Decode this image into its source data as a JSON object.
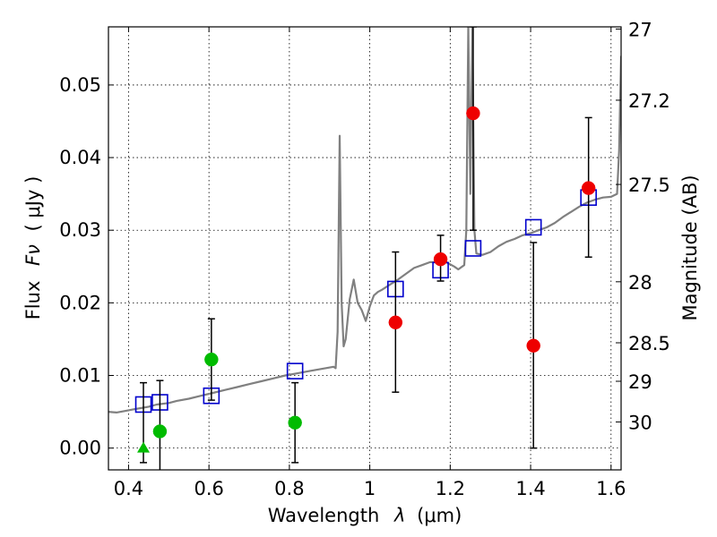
{
  "chart_data": {
    "type": "scatter",
    "xlabel_text": "Wavelength",
    "xlabel_symbol": "λ",
    "xlabel_unit": "(μm)",
    "ylabel_text": "Flux",
    "ylabel_symbol": "Fν",
    "ylabel_unit": "( μJy )",
    "y2label": "Magnitude (AB)",
    "xlim": [
      0.35,
      1.625
    ],
    "ylim": [
      -0.003,
      0.058
    ],
    "xticks": [
      {
        "value": 0.4,
        "label": "0.4"
      },
      {
        "value": 0.6,
        "label": "0.6"
      },
      {
        "value": 0.8,
        "label": "0.8"
      },
      {
        "value": 1.0,
        "label": "1"
      },
      {
        "value": 1.2,
        "label": "1.2"
      },
      {
        "value": 1.4,
        "label": "1.4"
      },
      {
        "value": 1.6,
        "label": "1.6"
      }
    ],
    "yticks": [
      {
        "value": 0.0,
        "label": "0.00"
      },
      {
        "value": 0.01,
        "label": "0.01"
      },
      {
        "value": 0.02,
        "label": "0.02"
      },
      {
        "value": 0.03,
        "label": "0.03"
      },
      {
        "value": 0.04,
        "label": "0.04"
      },
      {
        "value": 0.05,
        "label": "0.05"
      }
    ],
    "y2ticks": [
      {
        "flux": 0.0577,
        "label": "27"
      },
      {
        "flux": 0.0479,
        "label": "27.2"
      },
      {
        "flux": 0.0363,
        "label": "27.5"
      },
      {
        "flux": 0.0229,
        "label": "28"
      },
      {
        "flux": 0.0145,
        "label": "28.5"
      },
      {
        "flux": 0.0092,
        "label": "29"
      },
      {
        "flux": 0.0036,
        "label": "30"
      }
    ],
    "grid": true,
    "series": [
      {
        "name": "model-sed",
        "kind": "line",
        "color": "#808080",
        "points": [
          [
            0.35,
            0.005
          ],
          [
            0.37,
            0.0049
          ],
          [
            0.39,
            0.0051
          ],
          [
            0.41,
            0.0053
          ],
          [
            0.43,
            0.0055
          ],
          [
            0.45,
            0.0057
          ],
          [
            0.47,
            0.006
          ],
          [
            0.5,
            0.0062
          ],
          [
            0.52,
            0.0065
          ],
          [
            0.55,
            0.0068
          ],
          [
            0.58,
            0.0072
          ],
          [
            0.61,
            0.0076
          ],
          [
            0.64,
            0.008
          ],
          [
            0.67,
            0.0084
          ],
          [
            0.7,
            0.0088
          ],
          [
            0.73,
            0.0092
          ],
          [
            0.76,
            0.0096
          ],
          [
            0.79,
            0.01
          ],
          [
            0.82,
            0.0103
          ],
          [
            0.85,
            0.0106
          ],
          [
            0.88,
            0.0109
          ],
          [
            0.91,
            0.0112
          ],
          [
            0.915,
            0.011
          ],
          [
            0.92,
            0.016
          ],
          [
            0.925,
            0.043
          ],
          [
            0.93,
            0.02
          ],
          [
            0.935,
            0.014
          ],
          [
            0.94,
            0.015
          ],
          [
            0.95,
            0.0205
          ],
          [
            0.96,
            0.0232
          ],
          [
            0.97,
            0.02
          ],
          [
            0.98,
            0.019
          ],
          [
            0.99,
            0.0175
          ],
          [
            1.0,
            0.0195
          ],
          [
            1.01,
            0.021
          ],
          [
            1.02,
            0.0215
          ],
          [
            1.03,
            0.0218
          ],
          [
            1.05,
            0.0225
          ],
          [
            1.07,
            0.0232
          ],
          [
            1.09,
            0.024
          ],
          [
            1.11,
            0.0248
          ],
          [
            1.13,
            0.0252
          ],
          [
            1.15,
            0.0256
          ],
          [
            1.17,
            0.0256
          ],
          [
            1.19,
            0.0256
          ],
          [
            1.21,
            0.025
          ],
          [
            1.22,
            0.0246
          ],
          [
            1.235,
            0.0252
          ],
          [
            1.24,
            0.03
          ],
          [
            1.245,
            0.058
          ],
          [
            1.25,
            0.035
          ],
          [
            1.255,
            0.058
          ],
          [
            1.26,
            0.03
          ],
          [
            1.265,
            0.0268
          ],
          [
            1.28,
            0.0266
          ],
          [
            1.3,
            0.027
          ],
          [
            1.32,
            0.0278
          ],
          [
            1.34,
            0.0284
          ],
          [
            1.36,
            0.0288
          ],
          [
            1.38,
            0.0293
          ],
          [
            1.4,
            0.0296
          ],
          [
            1.42,
            0.03
          ],
          [
            1.44,
            0.0304
          ],
          [
            1.46,
            0.031
          ],
          [
            1.48,
            0.0318
          ],
          [
            1.5,
            0.0325
          ],
          [
            1.52,
            0.0332
          ],
          [
            1.54,
            0.0338
          ],
          [
            1.56,
            0.0342
          ],
          [
            1.58,
            0.0345
          ],
          [
            1.6,
            0.0346
          ],
          [
            1.615,
            0.035
          ],
          [
            1.62,
            0.041
          ],
          [
            1.625,
            0.054
          ]
        ]
      },
      {
        "name": "model-photometry",
        "kind": "square",
        "color": "#0000cc",
        "points": [
          {
            "x": 0.437,
            "y": 0.006
          },
          {
            "x": 0.478,
            "y": 0.0063
          },
          {
            "x": 0.606,
            "y": 0.0072
          },
          {
            "x": 0.814,
            "y": 0.0106
          },
          {
            "x": 1.064,
            "y": 0.0219
          },
          {
            "x": 1.176,
            "y": 0.0245
          },
          {
            "x": 1.257,
            "y": 0.0275
          },
          {
            "x": 1.407,
            "y": 0.0304
          },
          {
            "x": 1.544,
            "y": 0.0345
          }
        ]
      },
      {
        "name": "optical-detections",
        "kind": "circle",
        "color": "#00bb00",
        "points": [
          {
            "x": 0.478,
            "y": 0.0023,
            "err_low": -0.0035,
            "err_high": 0.0093
          },
          {
            "x": 0.606,
            "y": 0.0122,
            "err_low": 0.0066,
            "err_high": 0.0178
          },
          {
            "x": 0.814,
            "y": 0.0035,
            "err_low": -0.002,
            "err_high": 0.009
          }
        ]
      },
      {
        "name": "optical-upper-limit",
        "kind": "triangle",
        "color": "#00bb00",
        "points": [
          {
            "x": 0.437,
            "y": 0.0,
            "err_low": -0.002,
            "err_high": 0.009
          }
        ]
      },
      {
        "name": "nir-detections",
        "kind": "circle",
        "color": "#ee0000",
        "points": [
          {
            "x": 1.064,
            "y": 0.0173,
            "err_low": 0.0077,
            "err_high": 0.027
          },
          {
            "x": 1.176,
            "y": 0.026,
            "err_low": 0.023,
            "err_high": 0.0293
          },
          {
            "x": 1.257,
            "y": 0.0461,
            "err_low": 0.03,
            "err_high": 0.058
          },
          {
            "x": 1.407,
            "y": 0.0141,
            "err_low": 0.0,
            "err_high": 0.0283
          },
          {
            "x": 1.544,
            "y": 0.0358,
            "err_low": 0.0263,
            "err_high": 0.0455
          }
        ]
      }
    ]
  }
}
